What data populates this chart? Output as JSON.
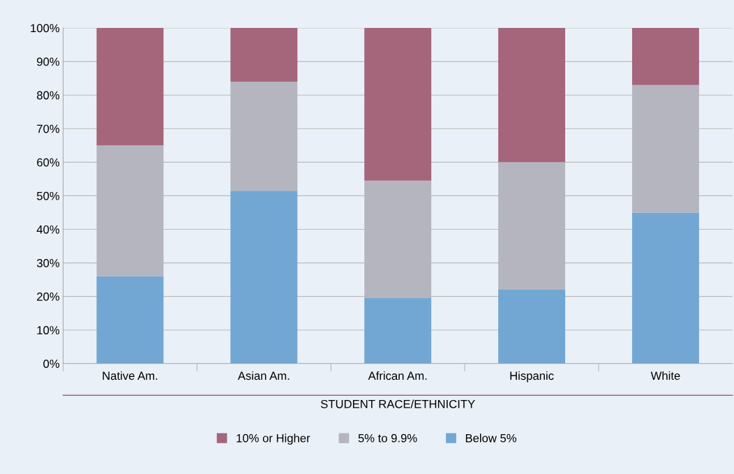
{
  "chart_data": {
    "type": "bar",
    "stacked": true,
    "xlabel": "STUDENT RACE/ETHNICITY",
    "categories": [
      "Native Am.",
      "Asian Am.",
      "African Am.",
      "Hispanic",
      "White"
    ],
    "series": [
      {
        "name": "Below 5%",
        "color": "#72a7d3",
        "values": [
          26,
          51.5,
          19.5,
          22,
          45
        ]
      },
      {
        "name": "5% to 9.9%",
        "color": "#b5b5bf",
        "values": [
          39,
          32.5,
          35,
          38,
          38
        ]
      },
      {
        "name": "10% or Higher",
        "color": "#a5657a",
        "values": [
          35,
          16,
          45.5,
          40,
          17
        ]
      }
    ],
    "ylim": [
      0,
      100
    ],
    "yticks": [
      {
        "value": 0,
        "label": "0%"
      },
      {
        "value": 10,
        "label": "10%"
      },
      {
        "value": 20,
        "label": "20%"
      },
      {
        "value": 30,
        "label": "30%"
      },
      {
        "value": 40,
        "label": "40%"
      },
      {
        "value": 50,
        "label": "50%"
      },
      {
        "value": 60,
        "label": "60%"
      },
      {
        "value": 70,
        "label": "70%"
      },
      {
        "value": 80,
        "label": "80%"
      },
      {
        "value": 90,
        "label": "90%"
      },
      {
        "value": 100,
        "label": "100%"
      }
    ],
    "grid": "y",
    "legend": "bottom"
  }
}
